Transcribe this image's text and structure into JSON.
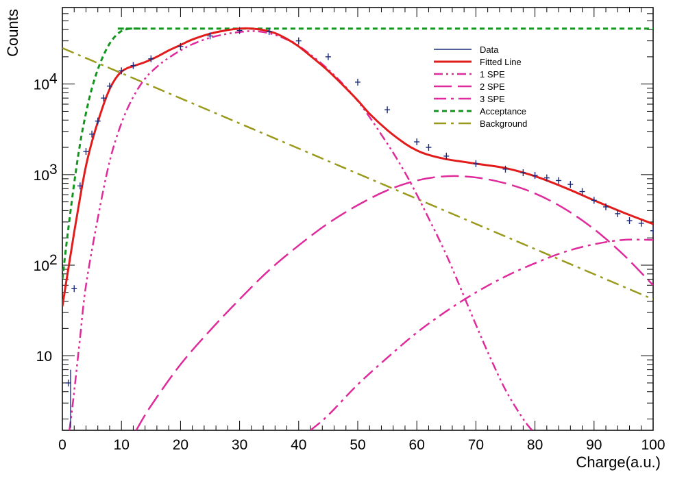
{
  "chart_data": {
    "type": "line",
    "xlabel": "Charge(a.u.)",
    "ylabel": "Counts",
    "xlim": [
      0,
      100
    ],
    "ylim": [
      1.5,
      70000
    ],
    "y_scale": "log",
    "grid": false,
    "legend_position": "top-right",
    "x_ticks": [
      0,
      10,
      20,
      30,
      40,
      50,
      60,
      70,
      80,
      90,
      100
    ],
    "y_ticks": [
      {
        "value": 10,
        "label": "10"
      },
      {
        "value": 100,
        "label": "10",
        "exp": "2"
      },
      {
        "value": 1000,
        "label": "10",
        "exp": "3"
      },
      {
        "value": 10000,
        "label": "10",
        "exp": "4"
      }
    ],
    "series": [
      {
        "name": "Data",
        "style": "markers",
        "color": "#1a2a7a",
        "x": [
          1,
          2,
          3,
          4,
          5,
          6,
          7,
          8,
          10,
          12,
          15,
          20,
          25,
          30,
          35,
          40,
          45,
          50,
          55,
          60,
          62,
          65,
          70,
          75,
          78,
          80,
          82,
          84,
          86,
          88,
          90,
          92,
          94,
          96,
          98,
          100
        ],
        "y": [
          5,
          55,
          750,
          1800,
          2800,
          3900,
          7000,
          9500,
          14000,
          16000,
          19000,
          26000,
          34000,
          39000,
          38000,
          30000,
          20000,
          10500,
          5200,
          2300,
          2000,
          1600,
          1320,
          1150,
          1050,
          980,
          920,
          860,
          780,
          650,
          520,
          440,
          370,
          310,
          290,
          240
        ]
      },
      {
        "name": "Fitted Line",
        "style": "solid",
        "color": "#e21b1b",
        "x": [
          0,
          1,
          2,
          3,
          4,
          5,
          6,
          7,
          8,
          9,
          10,
          11,
          12,
          14,
          16,
          18,
          20,
          22,
          25,
          28,
          30,
          32,
          34,
          36,
          38,
          40,
          42,
          45,
          48,
          50,
          52,
          55,
          58,
          60,
          62,
          65,
          68,
          70,
          75,
          80,
          85,
          90,
          95,
          100
        ],
        "y": [
          35,
          90,
          230,
          560,
          1250,
          2300,
          3800,
          6000,
          8800,
          11500,
          13700,
          15000,
          15800,
          17500,
          20000,
          23500,
          27000,
          31000,
          36000,
          39500,
          41000,
          41000,
          39500,
          36500,
          31500,
          26000,
          20500,
          14000,
          9000,
          6600,
          4700,
          3100,
          2200,
          1850,
          1650,
          1480,
          1380,
          1320,
          1180,
          960,
          720,
          520,
          380,
          285
        ]
      },
      {
        "name": "1 SPE",
        "style": "dash-dot-dot",
        "color": "#de2a9a",
        "x": [
          1.2,
          2,
          3,
          4,
          6,
          8,
          10,
          12,
          14,
          16,
          18,
          20,
          22,
          25,
          28,
          30,
          32,
          34,
          36,
          38,
          40,
          45,
          50,
          55,
          58,
          60,
          62,
          65,
          68,
          70,
          72,
          75,
          78,
          79.5
        ],
        "y": [
          1.5,
          4,
          16,
          60,
          330,
          1400,
          3700,
          7200,
          11500,
          15500,
          19500,
          23500,
          27500,
          32500,
          36000,
          37500,
          38500,
          37500,
          35000,
          31000,
          26500,
          14500,
          6500,
          2200,
          1050,
          600,
          330,
          130,
          45,
          22,
          11,
          4.2,
          2,
          1.5
        ]
      },
      {
        "name": "2 SPE",
        "style": "long-dash",
        "color": "#de2a9a",
        "x": [
          12.5,
          15,
          20,
          25,
          30,
          35,
          40,
          45,
          50,
          55,
          60,
          65,
          70,
          75,
          80,
          85,
          90,
          95,
          100
        ],
        "y": [
          1.5,
          2.8,
          8,
          19,
          42,
          88,
          165,
          290,
          460,
          670,
          860,
          960,
          930,
          800,
          620,
          420,
          250,
          130,
          60
        ]
      },
      {
        "name": "3 SPE",
        "style": "dash-dot",
        "color": "#de2a9a",
        "x": [
          42,
          45,
          50,
          55,
          60,
          65,
          70,
          75,
          80,
          85,
          90,
          95,
          100
        ],
        "y": [
          1.5,
          2.2,
          4.8,
          9.5,
          18,
          31,
          50,
          75,
          105,
          140,
          170,
          190,
          190
        ]
      },
      {
        "name": "Acceptance",
        "style": "short-dash",
        "color": "#12961e",
        "x": [
          0,
          1,
          2,
          3,
          4,
          5,
          6,
          7,
          8,
          9,
          10,
          11,
          12,
          13,
          14,
          16,
          100
        ],
        "y": [
          70,
          250,
          800,
          2200,
          4800,
          9000,
          14500,
          21000,
          28000,
          34000,
          38500,
          40500,
          41000,
          41000,
          41000,
          41000,
          41000
        ]
      },
      {
        "name": "Background",
        "style": "dash-dot",
        "color": "#999a1c",
        "x": [
          0,
          100
        ],
        "y": [
          25000,
          42
        ]
      }
    ]
  }
}
